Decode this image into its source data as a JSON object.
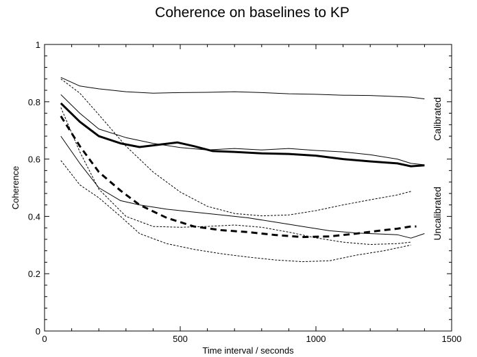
{
  "chart_data": {
    "type": "line",
    "title": "Coherence on baselines to KP",
    "xlabel": "Time interval / seconds",
    "ylabel": "Coherence",
    "xlim": [
      0,
      1500
    ],
    "ylim": [
      0,
      1
    ],
    "xticks": [
      0,
      500,
      1000,
      1500
    ],
    "yticks": [
      0,
      0.2,
      0.4,
      0.6,
      0.8,
      1
    ],
    "xtick_labels": [
      "0",
      "500",
      "1000",
      "1500"
    ],
    "ytick_labels": [
      "0",
      "0.2",
      "0.4",
      "0.6",
      "0.8",
      "1"
    ],
    "grid": false,
    "legend": "none",
    "annotations": [
      {
        "text": "Calibrated",
        "x": 1460,
        "y": 0.74
      },
      {
        "text": "Uncalibrated",
        "x": 1460,
        "y": 0.41
      }
    ],
    "series": [
      {
        "group": "calibrated",
        "style": "solid-thick",
        "x": [
          60,
          130,
          200,
          280,
          350,
          420,
          490,
          550,
          620,
          700,
          800,
          900,
          1000,
          1100,
          1200,
          1300,
          1350,
          1400
        ],
        "y": [
          0.795,
          0.73,
          0.68,
          0.655,
          0.642,
          0.65,
          0.658,
          0.645,
          0.628,
          0.625,
          0.62,
          0.618,
          0.612,
          0.6,
          0.592,
          0.585,
          0.575,
          0.578
        ]
      },
      {
        "group": "calibrated",
        "style": "solid-thin",
        "x": [
          60,
          130,
          200,
          300,
          400,
          500,
          600,
          700,
          800,
          900,
          1000,
          1100,
          1200,
          1300,
          1350,
          1400
        ],
        "y": [
          0.885,
          0.855,
          0.845,
          0.835,
          0.83,
          0.832,
          0.833,
          0.835,
          0.832,
          0.828,
          0.826,
          0.823,
          0.822,
          0.818,
          0.816,
          0.81
        ]
      },
      {
        "group": "calibrated",
        "style": "solid-thin",
        "x": [
          60,
          130,
          200,
          300,
          400,
          500,
          600,
          700,
          800,
          900,
          1000,
          1100,
          1200,
          1300,
          1350,
          1400
        ],
        "y": [
          0.825,
          0.76,
          0.705,
          0.675,
          0.655,
          0.64,
          0.632,
          0.637,
          0.632,
          0.637,
          0.63,
          0.625,
          0.615,
          0.6,
          0.585,
          0.58
        ]
      },
      {
        "group": "calibrated",
        "style": "solid-thin",
        "x": [
          60,
          130,
          200,
          280,
          350,
          450,
          550,
          650,
          750,
          850,
          950,
          1050,
          1150,
          1250,
          1300,
          1350,
          1400
        ],
        "y": [
          0.68,
          0.585,
          0.5,
          0.455,
          0.44,
          0.425,
          0.415,
          0.405,
          0.395,
          0.38,
          0.365,
          0.35,
          0.342,
          0.338,
          0.336,
          0.324,
          0.34
        ]
      },
      {
        "group": "uncalibrated",
        "style": "dashed-thick",
        "x": [
          60,
          130,
          200,
          280,
          350,
          450,
          550,
          650,
          750,
          850,
          950,
          1050,
          1150,
          1250,
          1300,
          1350,
          1370
        ],
        "y": [
          0.75,
          0.645,
          0.555,
          0.49,
          0.44,
          0.395,
          0.365,
          0.352,
          0.345,
          0.335,
          0.328,
          0.33,
          0.34,
          0.352,
          0.357,
          0.365,
          0.365
        ]
      },
      {
        "group": "uncalibrated",
        "style": "dashed-thin",
        "x": [
          60,
          130,
          200,
          300,
          400,
          500,
          600,
          700,
          800,
          900,
          1000,
          1100,
          1200,
          1300,
          1350
        ],
        "y": [
          0.88,
          0.83,
          0.755,
          0.645,
          0.555,
          0.485,
          0.435,
          0.41,
          0.402,
          0.405,
          0.42,
          0.44,
          0.458,
          0.475,
          0.487
        ]
      },
      {
        "group": "uncalibrated",
        "style": "dashed-thin",
        "x": [
          60,
          130,
          200,
          300,
          400,
          500,
          600,
          700,
          800,
          900,
          1000,
          1100,
          1200,
          1300,
          1350
        ],
        "y": [
          0.78,
          0.625,
          0.495,
          0.4,
          0.365,
          0.362,
          0.365,
          0.37,
          0.362,
          0.345,
          0.325,
          0.31,
          0.302,
          0.305,
          0.31
        ]
      },
      {
        "group": "uncalibrated",
        "style": "dashed-thin",
        "x": [
          60,
          130,
          200,
          280,
          350,
          450,
          550,
          650,
          750,
          850,
          950,
          1050,
          1150,
          1250,
          1300,
          1350
        ],
        "y": [
          0.595,
          0.51,
          0.465,
          0.4,
          0.34,
          0.305,
          0.285,
          0.27,
          0.258,
          0.248,
          0.242,
          0.245,
          0.265,
          0.28,
          0.29,
          0.3
        ]
      }
    ]
  }
}
